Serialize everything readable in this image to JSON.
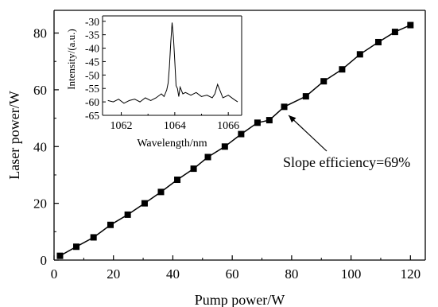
{
  "chart_data": [
    {
      "type": "line",
      "xlabel": "Pump power/W",
      "ylabel": "Laser power/W",
      "xlim": [
        0,
        125
      ],
      "ylim": [
        0,
        88
      ],
      "xticks": [
        0,
        20,
        40,
        60,
        80,
        100,
        120
      ],
      "yticks": [
        0,
        20,
        40,
        60,
        80
      ],
      "grid": false,
      "marker": "square",
      "series": [
        {
          "x": [
            2,
            7.5,
            13.3,
            19,
            24.8,
            30.5,
            36,
            41.5,
            47,
            51.8,
            57.5,
            63,
            68.5,
            72.5,
            77.5,
            84.8,
            90.8,
            97,
            103,
            109.2,
            114.8,
            120
          ],
          "values": [
            1.5,
            4.7,
            8,
            12.4,
            16,
            20,
            24,
            28.3,
            32.2,
            36.3,
            40,
            44.4,
            48.4,
            49.3,
            54,
            57.7,
            63,
            67.2,
            72.5,
            76.8,
            80.4,
            82.8
          ]
        }
      ],
      "annotation": {
        "text": "Slope efficiency=69%",
        "arrow_to": {
          "x": 79,
          "y": 51
        }
      }
    },
    {
      "type": "line",
      "xlabel": "Wavelength/nm",
      "ylabel": "Intensity/(a.u.)",
      "xlim": [
        1061.3,
        1066.5
      ],
      "ylim": [
        -65,
        -28
      ],
      "xticks": [
        1062,
        1064,
        1066
      ],
      "yticks": [
        -30,
        -35,
        -40,
        -45,
        -50,
        -55,
        -60,
        -65
      ],
      "series": [
        {
          "x": [
            1061.5,
            1061.7,
            1061.9,
            1062.1,
            1062.3,
            1062.5,
            1062.7,
            1062.9,
            1063.1,
            1063.3,
            1063.5,
            1063.6,
            1063.7,
            1063.75,
            1063.8,
            1063.85,
            1063.9,
            1063.95,
            1064.0,
            1064.05,
            1064.1,
            1064.15,
            1064.2,
            1064.3,
            1064.4,
            1064.6,
            1064.8,
            1065.0,
            1065.2,
            1065.4,
            1065.5,
            1065.6,
            1065.8,
            1066.0,
            1066.2,
            1066.35
          ],
          "values": [
            -59.5,
            -60,
            -59,
            -60.5,
            -59.5,
            -59,
            -60,
            -58.5,
            -59.5,
            -58.5,
            -57,
            -58,
            -55.5,
            -53,
            -47,
            -38,
            -30.5,
            -36,
            -45,
            -54,
            -55,
            -58,
            -54.5,
            -57,
            -56.5,
            -57.5,
            -56.5,
            -58,
            -57.5,
            -58.5,
            -57,
            -53.5,
            -58.5,
            -57.5,
            -59,
            -60
          ]
        }
      ]
    }
  ]
}
